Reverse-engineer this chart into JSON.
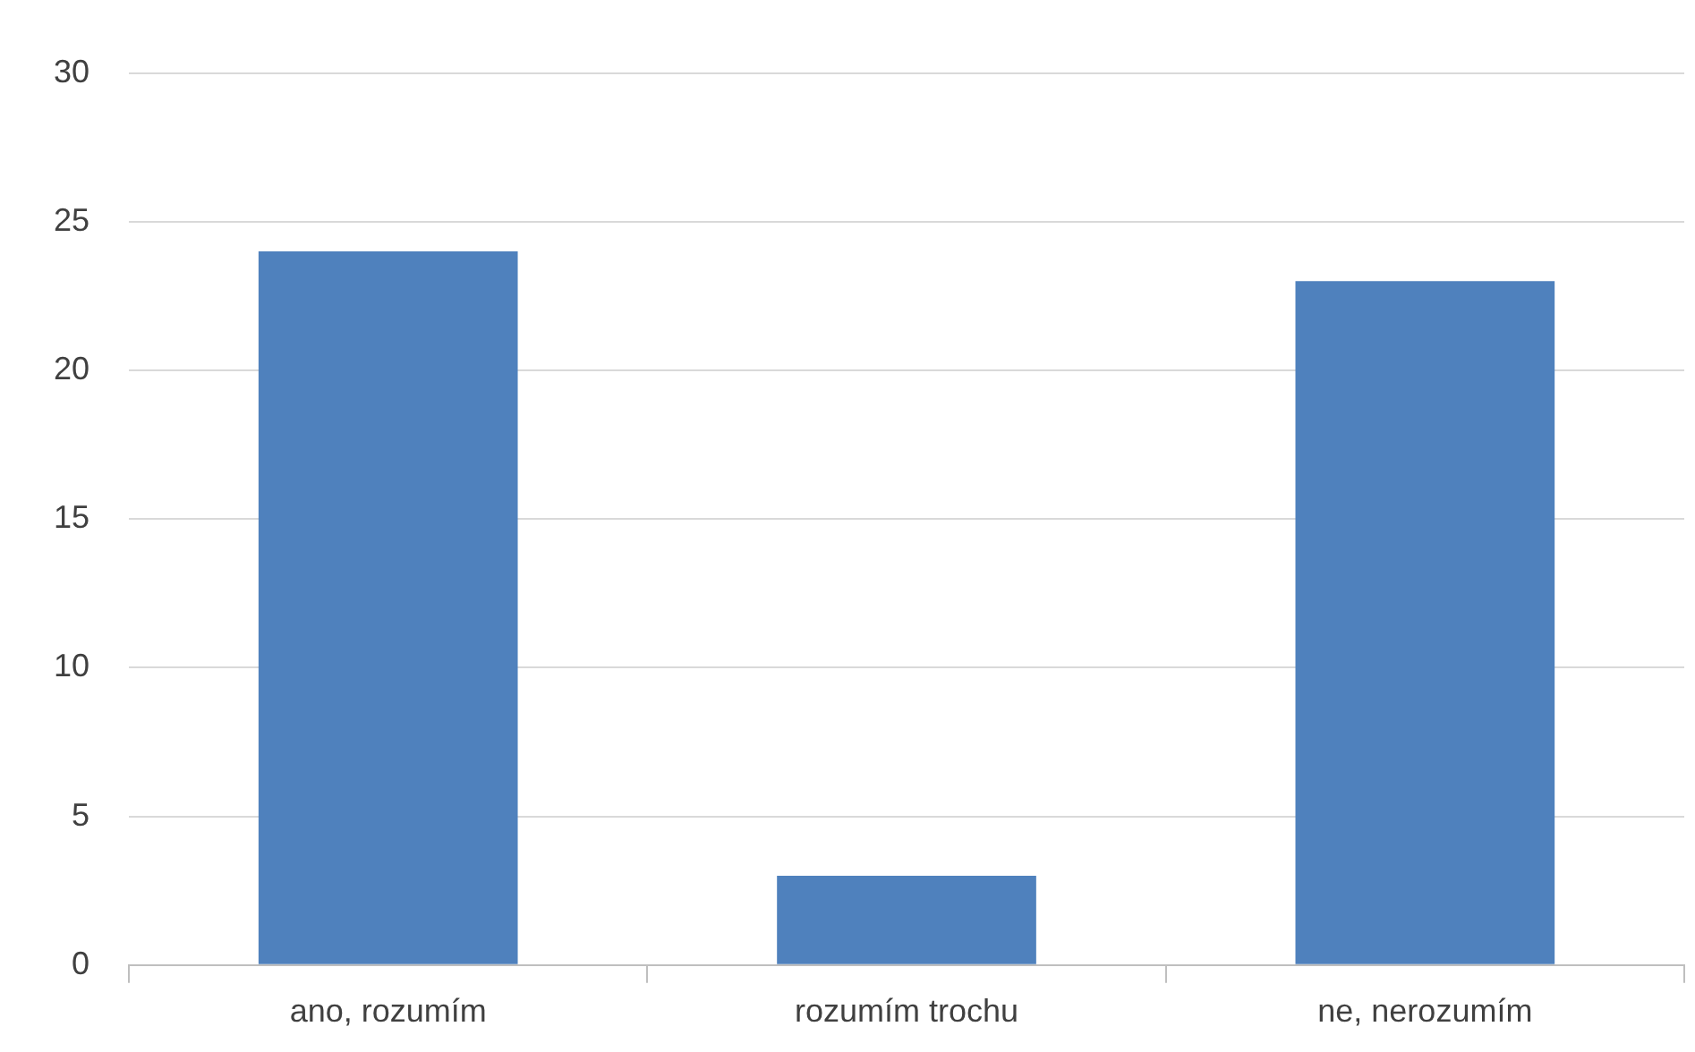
{
  "chart_data": {
    "type": "bar",
    "categories": [
      "ano, rozumím",
      "rozumím trochu",
      "ne, nerozumím"
    ],
    "values": [
      24,
      3,
      23
    ],
    "color": "#4f81bd",
    "ylim": [
      0,
      30
    ],
    "yticks": [
      0,
      5,
      10,
      15,
      20,
      25,
      30
    ],
    "grid": "y",
    "legend": false
  }
}
